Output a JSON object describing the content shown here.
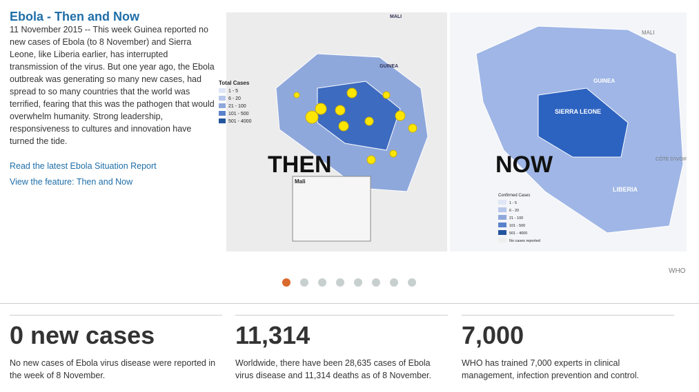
{
  "header": {
    "title": "Ebola - Then and Now",
    "body": "11 November 2015 -- This week Guinea reported no new cases of Ebola (to 8 November) and Sierra Leone, like Liberia earlier, has interrupted transmission of the virus. But one year ago, the Ebola outbreak was generating so many new cases, had spread to so many countries that the world was terrified, fearing that this was the pathogen that would overwhelm humanity. Strong leadership, responsiveness to cultures and innovation have turned the tide."
  },
  "links": [
    "Read the latest Ebola Situation Report",
    "View the feature: Then and Now"
  ],
  "slide": {
    "then_map": {
      "label": "THEN",
      "legend_title": "Total Cases",
      "legend": [
        "1 - 5",
        "6 - 20",
        "21 - 100",
        "101 - 500",
        "501 - 4000"
      ],
      "inset": "Mali",
      "regions": [
        "GUINEA",
        "MALI"
      ]
    },
    "now_map": {
      "label": "NOW",
      "legend_title": "Confirmed Cases",
      "legend": [
        "1 - 5",
        "6 - 20",
        "21 - 100",
        "101 - 500",
        "501 - 4000",
        "No cases reported"
      ],
      "regions": [
        "SIERRA LEONE",
        "LIBERIA",
        "GUINEA",
        "MALI",
        "CÔTE D'IVOIRE"
      ]
    },
    "credit": "WHO"
  },
  "stats": [
    {
      "value": "0 new cases",
      "text": "No new cases of Ebola virus disease were reported in the week of 8 November."
    },
    {
      "value": "11,314",
      "text": "Worldwide, there have been 28,635 cases of Ebola virus disease and 11,314 deaths as of 8 November."
    },
    {
      "value": "7,000",
      "text": "WHO has trained 7,000 experts in clinical management, infection prevention and control."
    }
  ]
}
